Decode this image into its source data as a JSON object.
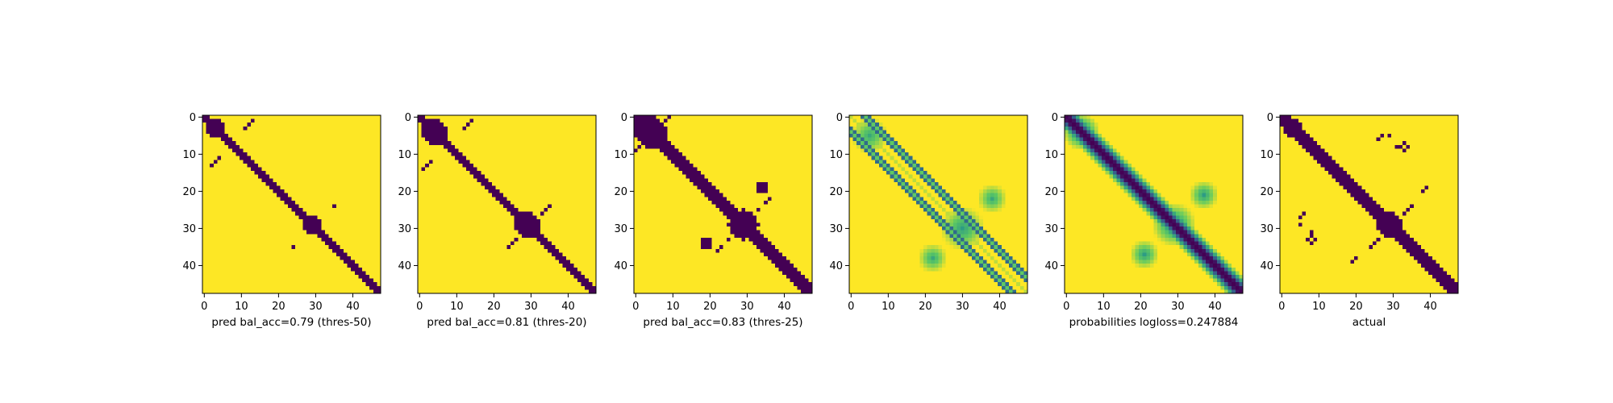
{
  "chart_data": [
    {
      "type": "heatmap",
      "matrix_size": 48,
      "xlabel": "pred bal_acc=0.79 (thres-50)",
      "xticks": [
        0,
        10,
        20,
        30,
        40
      ],
      "yticks": [
        0,
        10,
        20,
        30,
        40
      ],
      "colormap": "viridis",
      "binary": true,
      "diag_halfwidth": 1.6,
      "blobs": [
        {
          "c": [
            3,
            3
          ],
          "r": 2.5,
          "v": 0
        },
        {
          "c": [
            29,
            29
          ],
          "r": 2.5,
          "v": 0
        },
        {
          "c": [
            34,
            34
          ],
          "r": 1.2,
          "v": 0
        }
      ],
      "points": [
        [
          12,
          3
        ],
        [
          13,
          2
        ],
        [
          11,
          4
        ],
        [
          3,
          11
        ],
        [
          2,
          12
        ],
        [
          1,
          13
        ],
        [
          35,
          24
        ],
        [
          24,
          35
        ]
      ]
    },
    {
      "type": "heatmap",
      "matrix_size": 48,
      "xlabel": "pred bal_acc=0.81 (thres-20)",
      "xticks": [
        0,
        10,
        20,
        30,
        40
      ],
      "yticks": [
        0,
        10,
        20,
        30,
        40
      ],
      "colormap": "viridis",
      "binary": true,
      "diag_halfwidth": 1.9,
      "blobs": [
        {
          "c": [
            4,
            4
          ],
          "r": 3.3,
          "v": 0
        },
        {
          "c": [
            29,
            29
          ],
          "r": 3.2,
          "v": 0
        }
      ],
      "points": [
        [
          13,
          2
        ],
        [
          14,
          1
        ],
        [
          12,
          3
        ],
        [
          2,
          13
        ],
        [
          1,
          14
        ],
        [
          3,
          12
        ],
        [
          25,
          34
        ],
        [
          24,
          35
        ],
        [
          34,
          25
        ],
        [
          35,
          24
        ],
        [
          26,
          33
        ],
        [
          33,
          26
        ]
      ]
    },
    {
      "type": "heatmap",
      "matrix_size": 48,
      "xlabel": "pred bal_acc=0.83 (thres-25)",
      "xticks": [
        0,
        10,
        20,
        30,
        40
      ],
      "yticks": [
        0,
        10,
        20,
        30,
        40
      ],
      "colormap": "viridis",
      "binary": true,
      "diag_halfwidth": 2.2,
      "blobs": [
        {
          "c": [
            4,
            4
          ],
          "r": 4.2,
          "v": 0
        },
        {
          "c": [
            29,
            29
          ],
          "r": 4.0,
          "v": 0
        },
        {
          "c": [
            19,
            34
          ],
          "r": 1.6,
          "v": 0
        },
        {
          "c": [
            34,
            19
          ],
          "r": 1.6,
          "v": 0
        }
      ],
      "points": [
        [
          8,
          1
        ],
        [
          9,
          0
        ],
        [
          1,
          8
        ],
        [
          0,
          9
        ],
        [
          33,
          25
        ],
        [
          35,
          23
        ],
        [
          23,
          35
        ],
        [
          25,
          33
        ],
        [
          36,
          22
        ],
        [
          22,
          36
        ]
      ]
    },
    {
      "type": "heatmap",
      "matrix_size": 48,
      "xlabel": "",
      "xticks": [
        0,
        10,
        20,
        30,
        40
      ],
      "yticks": [
        0,
        10,
        20,
        30,
        40
      ],
      "colormap": "viridis",
      "binary": false,
      "pattern": "offset-diagonals",
      "offsets": [
        3,
        5
      ],
      "blobs": [
        {
          "c": [
            5,
            5
          ],
          "r": 5,
          "v": 0.6
        },
        {
          "c": [
            30,
            30
          ],
          "r": 6,
          "v": 0.55
        },
        {
          "c": [
            22,
            38
          ],
          "r": 4,
          "v": 0.6
        },
        {
          "c": [
            38,
            22
          ],
          "r": 4,
          "v": 0.6
        }
      ]
    },
    {
      "type": "heatmap",
      "matrix_size": 48,
      "xlabel": "probabilities logloss=0.247884",
      "xticks": [
        0,
        10,
        20,
        30,
        40
      ],
      "yticks": [
        0,
        10,
        20,
        30,
        40
      ],
      "colormap": "viridis",
      "binary": false,
      "pattern": "main-diagonal",
      "blobs": [
        {
          "c": [
            4,
            4
          ],
          "r": 5,
          "v": 0.4
        },
        {
          "c": [
            29,
            29
          ],
          "r": 6,
          "v": 0.45
        },
        {
          "c": [
            21,
            37
          ],
          "r": 4,
          "v": 0.55
        },
        {
          "c": [
            37,
            21
          ],
          "r": 4,
          "v": 0.55
        }
      ]
    },
    {
      "type": "heatmap",
      "matrix_size": 48,
      "xlabel": "actual",
      "xticks": [
        0,
        10,
        20,
        30,
        40
      ],
      "yticks": [
        0,
        10,
        20,
        30,
        40
      ],
      "colormap": "viridis",
      "binary": true,
      "diag_halfwidth": 2.3,
      "blobs": [
        {
          "c": [
            3,
            3
          ],
          "r": 2.5,
          "v": 0
        },
        {
          "c": [
            29,
            29
          ],
          "r": 3.5,
          "v": 0
        }
      ],
      "points": [
        [
          5,
          27
        ],
        [
          6,
          26
        ],
        [
          5,
          29
        ],
        [
          8,
          31
        ],
        [
          8,
          32
        ],
        [
          9,
          33
        ],
        [
          27,
          5
        ],
        [
          26,
          6
        ],
        [
          29,
          5
        ],
        [
          31,
          8
        ],
        [
          32,
          8
        ],
        [
          33,
          9
        ],
        [
          32,
          8
        ],
        [
          33,
          7
        ],
        [
          34,
          8
        ],
        [
          8,
          32
        ],
        [
          7,
          33
        ],
        [
          8,
          34
        ],
        [
          24,
          35
        ],
        [
          25,
          34
        ],
        [
          26,
          33
        ],
        [
          35,
          24
        ],
        [
          34,
          25
        ],
        [
          33,
          26
        ],
        [
          18,
          20
        ],
        [
          20,
          18
        ],
        [
          38,
          20
        ],
        [
          20,
          38
        ],
        [
          39,
          19
        ],
        [
          19,
          39
        ]
      ]
    }
  ]
}
